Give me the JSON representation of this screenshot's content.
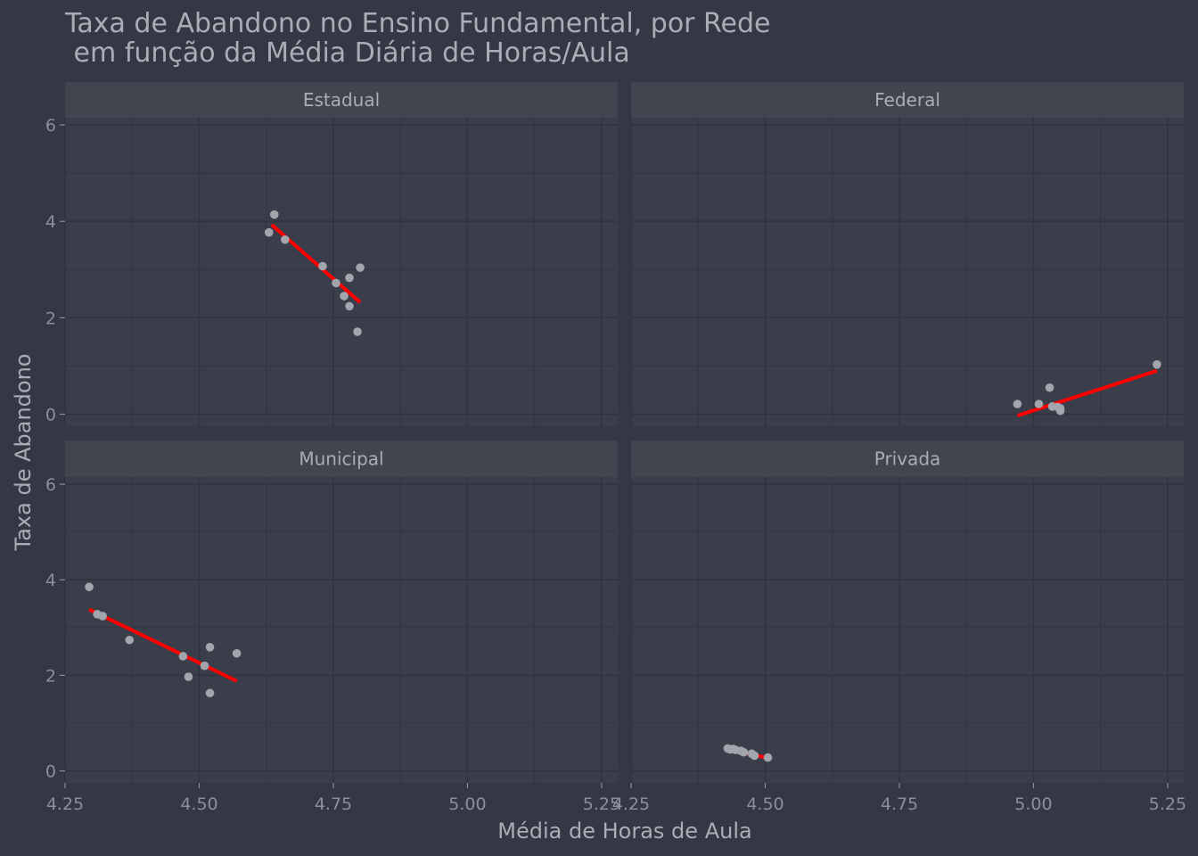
{
  "colors": {
    "background": "#333844",
    "panel": "#393e4a",
    "strip": "#40454f",
    "grid": "#2f343e",
    "title": "#a9adb5",
    "axis_text": "#8a8f99",
    "point": "#a2a5ab",
    "fit_line": "#ff0000"
  },
  "chart_data": {
    "type": "scatter",
    "title": "Taxa de Abandono no Ensino Fundamental, por Rede",
    "subtitle": " em função da Média Diária de Horas/Aula",
    "xlabel": "Média de Horas de Aula",
    "ylabel": "Taxa de Abandono",
    "xlim": [
      4.25,
      5.28
    ],
    "ylim": [
      -0.25,
      6.15
    ],
    "x_ticks": [
      "4.25",
      "4.50",
      "4.75",
      "5.00",
      "5.25"
    ],
    "y_ticks": [
      "0",
      "2",
      "4",
      "6"
    ],
    "grid": true,
    "legend": "none",
    "panels": [
      {
        "name": "Estadual",
        "points": [
          [
            4.63,
            3.77
          ],
          [
            4.64,
            4.14
          ],
          [
            4.66,
            3.62
          ],
          [
            4.73,
            3.07
          ],
          [
            4.755,
            2.72
          ],
          [
            4.77,
            2.45
          ],
          [
            4.78,
            2.83
          ],
          [
            4.78,
            2.24
          ],
          [
            4.795,
            1.71
          ],
          [
            4.8,
            3.04
          ]
        ],
        "fit": [
          [
            4.635,
            3.93
          ],
          [
            4.8,
            2.32
          ]
        ]
      },
      {
        "name": "Federal",
        "points": [
          [
            4.97,
            0.21
          ],
          [
            5.01,
            0.21
          ],
          [
            5.03,
            0.55
          ],
          [
            5.035,
            0.16
          ],
          [
            5.045,
            0.15
          ],
          [
            5.05,
            0.12
          ],
          [
            5.05,
            0.07
          ],
          [
            5.23,
            1.03
          ]
        ],
        "fit": [
          [
            4.97,
            -0.03
          ],
          [
            5.23,
            0.9
          ]
        ]
      },
      {
        "name": "Municipal",
        "points": [
          [
            4.295,
            3.85
          ],
          [
            4.31,
            3.28
          ],
          [
            4.32,
            3.24
          ],
          [
            4.37,
            2.74
          ],
          [
            4.47,
            2.4
          ],
          [
            4.48,
            1.97
          ],
          [
            4.51,
            2.2
          ],
          [
            4.52,
            2.59
          ],
          [
            4.52,
            1.63
          ],
          [
            4.57,
            2.46
          ]
        ],
        "fit": [
          [
            4.295,
            3.38
          ],
          [
            4.57,
            1.88
          ]
        ]
      },
      {
        "name": "Privada",
        "points": [
          [
            4.43,
            0.47
          ],
          [
            4.435,
            0.45
          ],
          [
            4.44,
            0.46
          ],
          [
            4.445,
            0.44
          ],
          [
            4.455,
            0.42
          ],
          [
            4.46,
            0.39
          ],
          [
            4.475,
            0.36
          ],
          [
            4.48,
            0.32
          ],
          [
            4.505,
            0.28
          ]
        ],
        "fit": [
          [
            4.43,
            0.46
          ],
          [
            4.505,
            0.27
          ]
        ]
      }
    ]
  }
}
